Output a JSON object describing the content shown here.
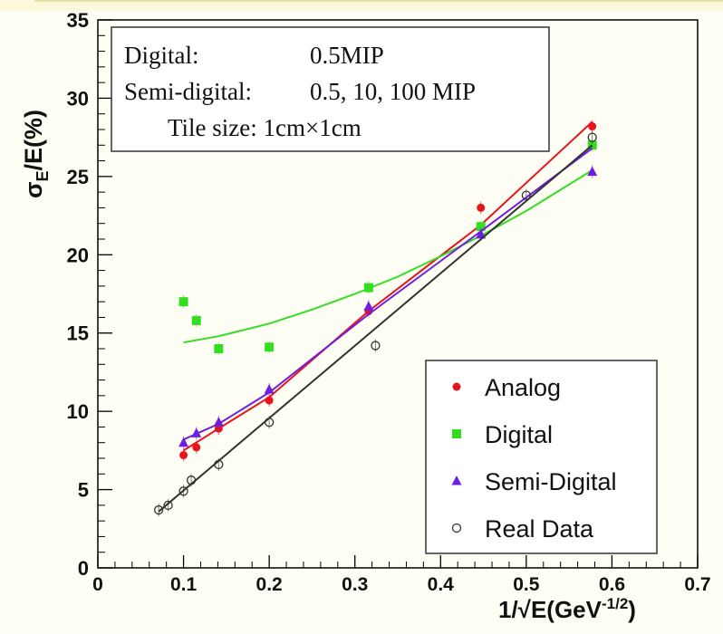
{
  "chart_data": {
    "type": "scatter",
    "xlabel": "1/√E(GeV",
    "xlabel_exponent": "-1/2",
    "xlabel_close": ")",
    "ylabel_sigma": "σ",
    "ylabel_sub": "E",
    "ylabel_rest": "/E(%)",
    "xlim": [
      0,
      0.7
    ],
    "ylim": [
      0,
      35
    ],
    "x_ticks": [
      0,
      0.1,
      0.2,
      0.3,
      0.4,
      0.5,
      0.6,
      0.7
    ],
    "x_tick_labels": [
      "0",
      "0.1",
      "0.2",
      "0.3",
      "0.4",
      "0.5",
      "0.6",
      "0.7"
    ],
    "y_ticks": [
      0,
      5,
      10,
      15,
      20,
      25,
      30,
      35
    ],
    "y_tick_labels": [
      "0",
      "5",
      "10",
      "15",
      "20",
      "25",
      "30",
      "35"
    ],
    "grid": false,
    "legend_position": "bottom-right",
    "annotation": {
      "lines": [
        {
          "label": "Digital:",
          "value": "0.5MIP"
        },
        {
          "label": "Semi-digital:",
          "value": "0.5, 10, 100 MIP"
        },
        {
          "label": "",
          "value": "Tile size: 1cm×1cm"
        }
      ]
    },
    "series": [
      {
        "name": "Analog",
        "marker": "circle-filled",
        "color": "#e8141c",
        "x": [
          0.1,
          0.115,
          0.141,
          0.2,
          0.316,
          0.447,
          0.577
        ],
        "y": [
          7.2,
          7.7,
          8.9,
          10.7,
          16.4,
          23.0,
          28.2
        ],
        "fit": {
          "x": [
            0.1,
            0.141,
            0.2,
            0.316,
            0.447,
            0.577
          ],
          "y": [
            7.5,
            8.9,
            10.9,
            16.4,
            21.9,
            28.5
          ]
        }
      },
      {
        "name": "Digital",
        "marker": "square",
        "color": "#33dd22",
        "x": [
          0.1,
          0.115,
          0.141,
          0.2,
          0.316,
          0.447,
          0.577
        ],
        "y": [
          17.0,
          15.8,
          14.0,
          14.1,
          17.9,
          21.8,
          27.0
        ],
        "fit": {
          "x": [
            0.1,
            0.141,
            0.2,
            0.25,
            0.3,
            0.35,
            0.4,
            0.45,
            0.5,
            0.577
          ],
          "y": [
            14.4,
            14.8,
            15.6,
            16.5,
            17.5,
            18.6,
            19.9,
            21.3,
            22.8,
            25.4
          ]
        }
      },
      {
        "name": "Semi-Digital",
        "marker": "triangle",
        "color": "#6f1ee0",
        "x": [
          0.1,
          0.115,
          0.141,
          0.2,
          0.316,
          0.447,
          0.577
        ],
        "y": [
          8.0,
          8.6,
          9.3,
          11.4,
          16.7,
          21.3,
          25.3
        ],
        "fit": {
          "x": [
            0.1,
            0.141,
            0.2,
            0.316,
            0.447,
            0.577
          ],
          "y": [
            8.2,
            9.2,
            11.2,
            16.2,
            21.5,
            26.8
          ]
        }
      },
      {
        "name": "Real Data",
        "marker": "circle-open",
        "color": "#333333",
        "x": [
          0.071,
          0.082,
          0.1,
          0.109,
          0.141,
          0.2,
          0.324,
          0.5,
          0.577
        ],
        "y": [
          3.7,
          4.0,
          4.9,
          5.6,
          6.6,
          9.3,
          14.2,
          23.8,
          27.5
        ],
        "fit": {
          "x": [
            0.071,
            0.577
          ],
          "y": [
            3.6,
            27.0
          ]
        }
      }
    ]
  }
}
